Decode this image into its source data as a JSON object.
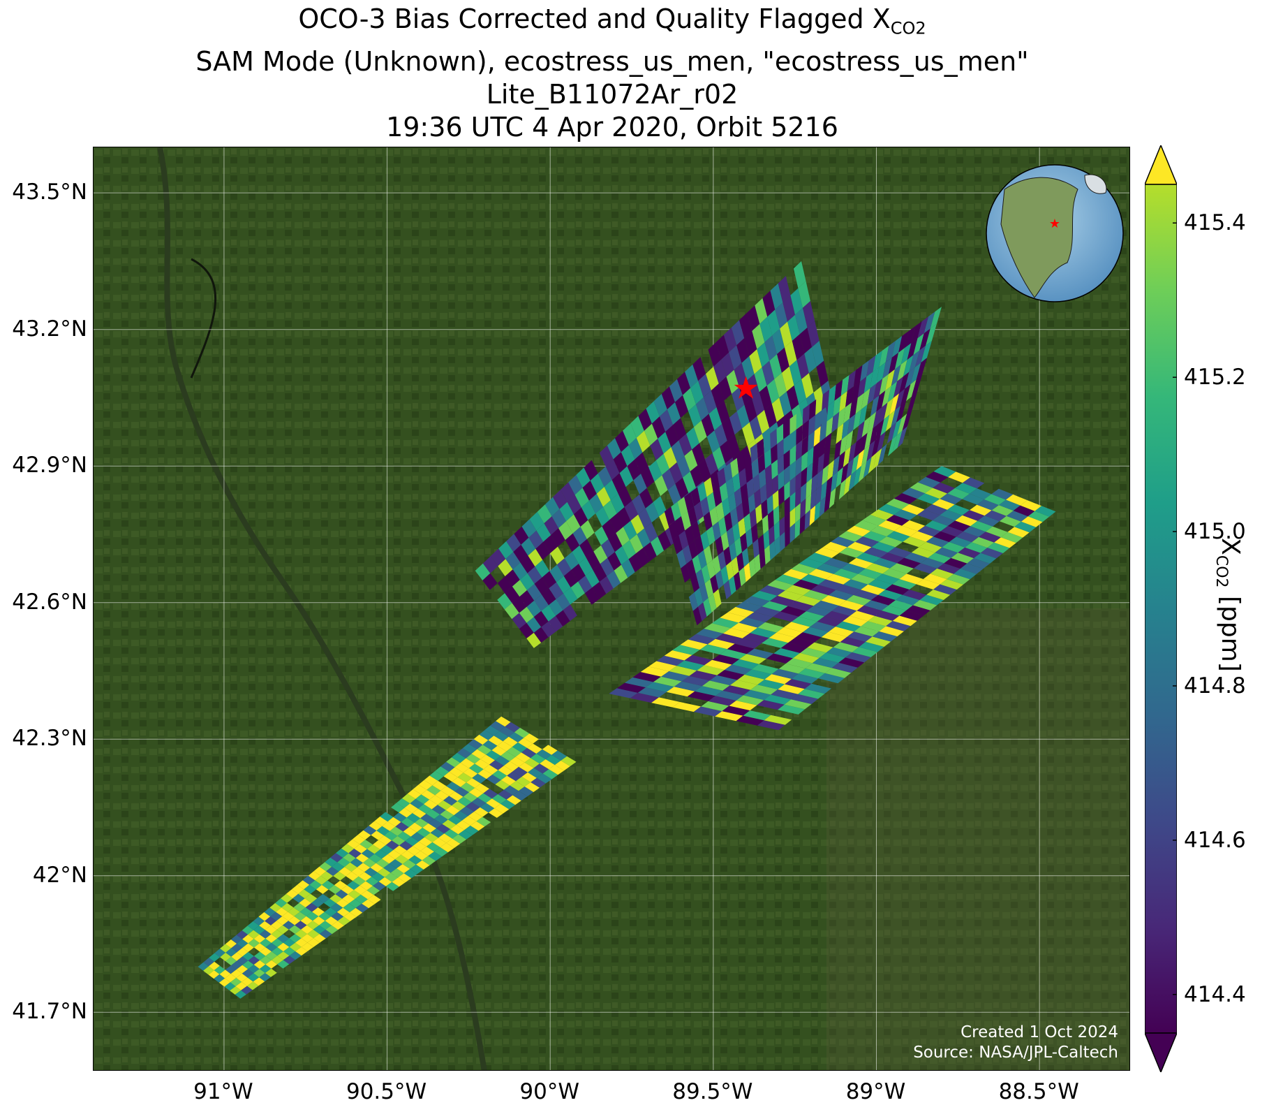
{
  "title": {
    "line1_prefix": "OCO-3 Bias Corrected and Quality Flagged X",
    "line1_sub": "CO2",
    "line2": "SAM Mode (Unknown), ecostress_us_men, \"ecostress_us_men\"",
    "line3": "Lite_B11072Ar_r02",
    "line4": "19:36 UTC 4 Apr 2020, Orbit 5216"
  },
  "map": {
    "lon_range": [
      -91.4,
      -88.22
    ],
    "lat_range": [
      41.57,
      43.6
    ],
    "lon_ticks": [
      {
        "value": -91.0,
        "label": "91°W"
      },
      {
        "value": -90.5,
        "label": "90.5°W"
      },
      {
        "value": -90.0,
        "label": "90°W"
      },
      {
        "value": -89.5,
        "label": "89.5°W"
      },
      {
        "value": -89.0,
        "label": "89°W"
      },
      {
        "value": -88.5,
        "label": "88.5°W"
      }
    ],
    "lat_ticks": [
      {
        "value": 43.5,
        "label": "43.5°N"
      },
      {
        "value": 43.2,
        "label": "43.2°N"
      },
      {
        "value": 42.9,
        "label": "42.9°N"
      },
      {
        "value": 42.6,
        "label": "42.6°N"
      },
      {
        "value": 42.3,
        "label": "42.3°N"
      },
      {
        "value": 42.0,
        "label": "42°N"
      },
      {
        "value": 41.7,
        "label": "41.7°N"
      }
    ],
    "target_marker": {
      "lon": -89.4,
      "lat": 43.07,
      "color": "#ff0000"
    },
    "gridlines": true,
    "background": "satellite imagery"
  },
  "colorbar": {
    "label_prefix": "X",
    "label_sub": "CO2",
    "label_suffix": " [ppm]",
    "vmin": 414.35,
    "vmax": 415.45,
    "extend": "both",
    "colormap": "viridis",
    "ticks": [
      {
        "value": 415.4,
        "label": "415.4"
      },
      {
        "value": 415.2,
        "label": "415.2"
      },
      {
        "value": 415.0,
        "label": "415.0"
      },
      {
        "value": 414.8,
        "label": "414.8"
      },
      {
        "value": 414.6,
        "label": "414.6"
      },
      {
        "value": 414.4,
        "label": "414.4"
      }
    ]
  },
  "inset_globe": {
    "marker_color": "#ff0000"
  },
  "credit": {
    "line1": "Created 1 Oct 2024",
    "line2": "Source: NASA/JPL-Caltech"
  },
  "chart_data": {
    "type": "heatmap",
    "title": "OCO-3 Bias Corrected and Quality Flagged XCO2",
    "xlabel": "",
    "ylabel": "",
    "colorbar_label": "XCO2 [ppm]",
    "xlim": [
      -91.4,
      -88.22
    ],
    "ylim": [
      41.57,
      43.6
    ],
    "swaths": [
      {
        "corners": [
          [
            -90.23,
            42.67
          ],
          [
            -89.23,
            43.35
          ],
          [
            -89.12,
            43.0
          ],
          [
            -90.05,
            42.5
          ]
        ],
        "mean_xco2": 414.7
      },
      {
        "corners": [
          [
            -89.65,
            42.8
          ],
          [
            -88.8,
            43.25
          ],
          [
            -88.92,
            42.95
          ],
          [
            -89.55,
            42.55
          ]
        ],
        "mean_xco2": 414.75
      },
      {
        "corners": [
          [
            -89.82,
            42.4
          ],
          [
            -88.8,
            42.9
          ],
          [
            -88.45,
            42.8
          ],
          [
            -89.3,
            42.32
          ]
        ],
        "mean_xco2": 414.95
      },
      {
        "corners": [
          [
            -91.08,
            41.8
          ],
          [
            -90.15,
            42.35
          ],
          [
            -89.92,
            42.25
          ],
          [
            -90.95,
            41.73
          ]
        ],
        "mean_xco2": 415.2
      }
    ]
  }
}
